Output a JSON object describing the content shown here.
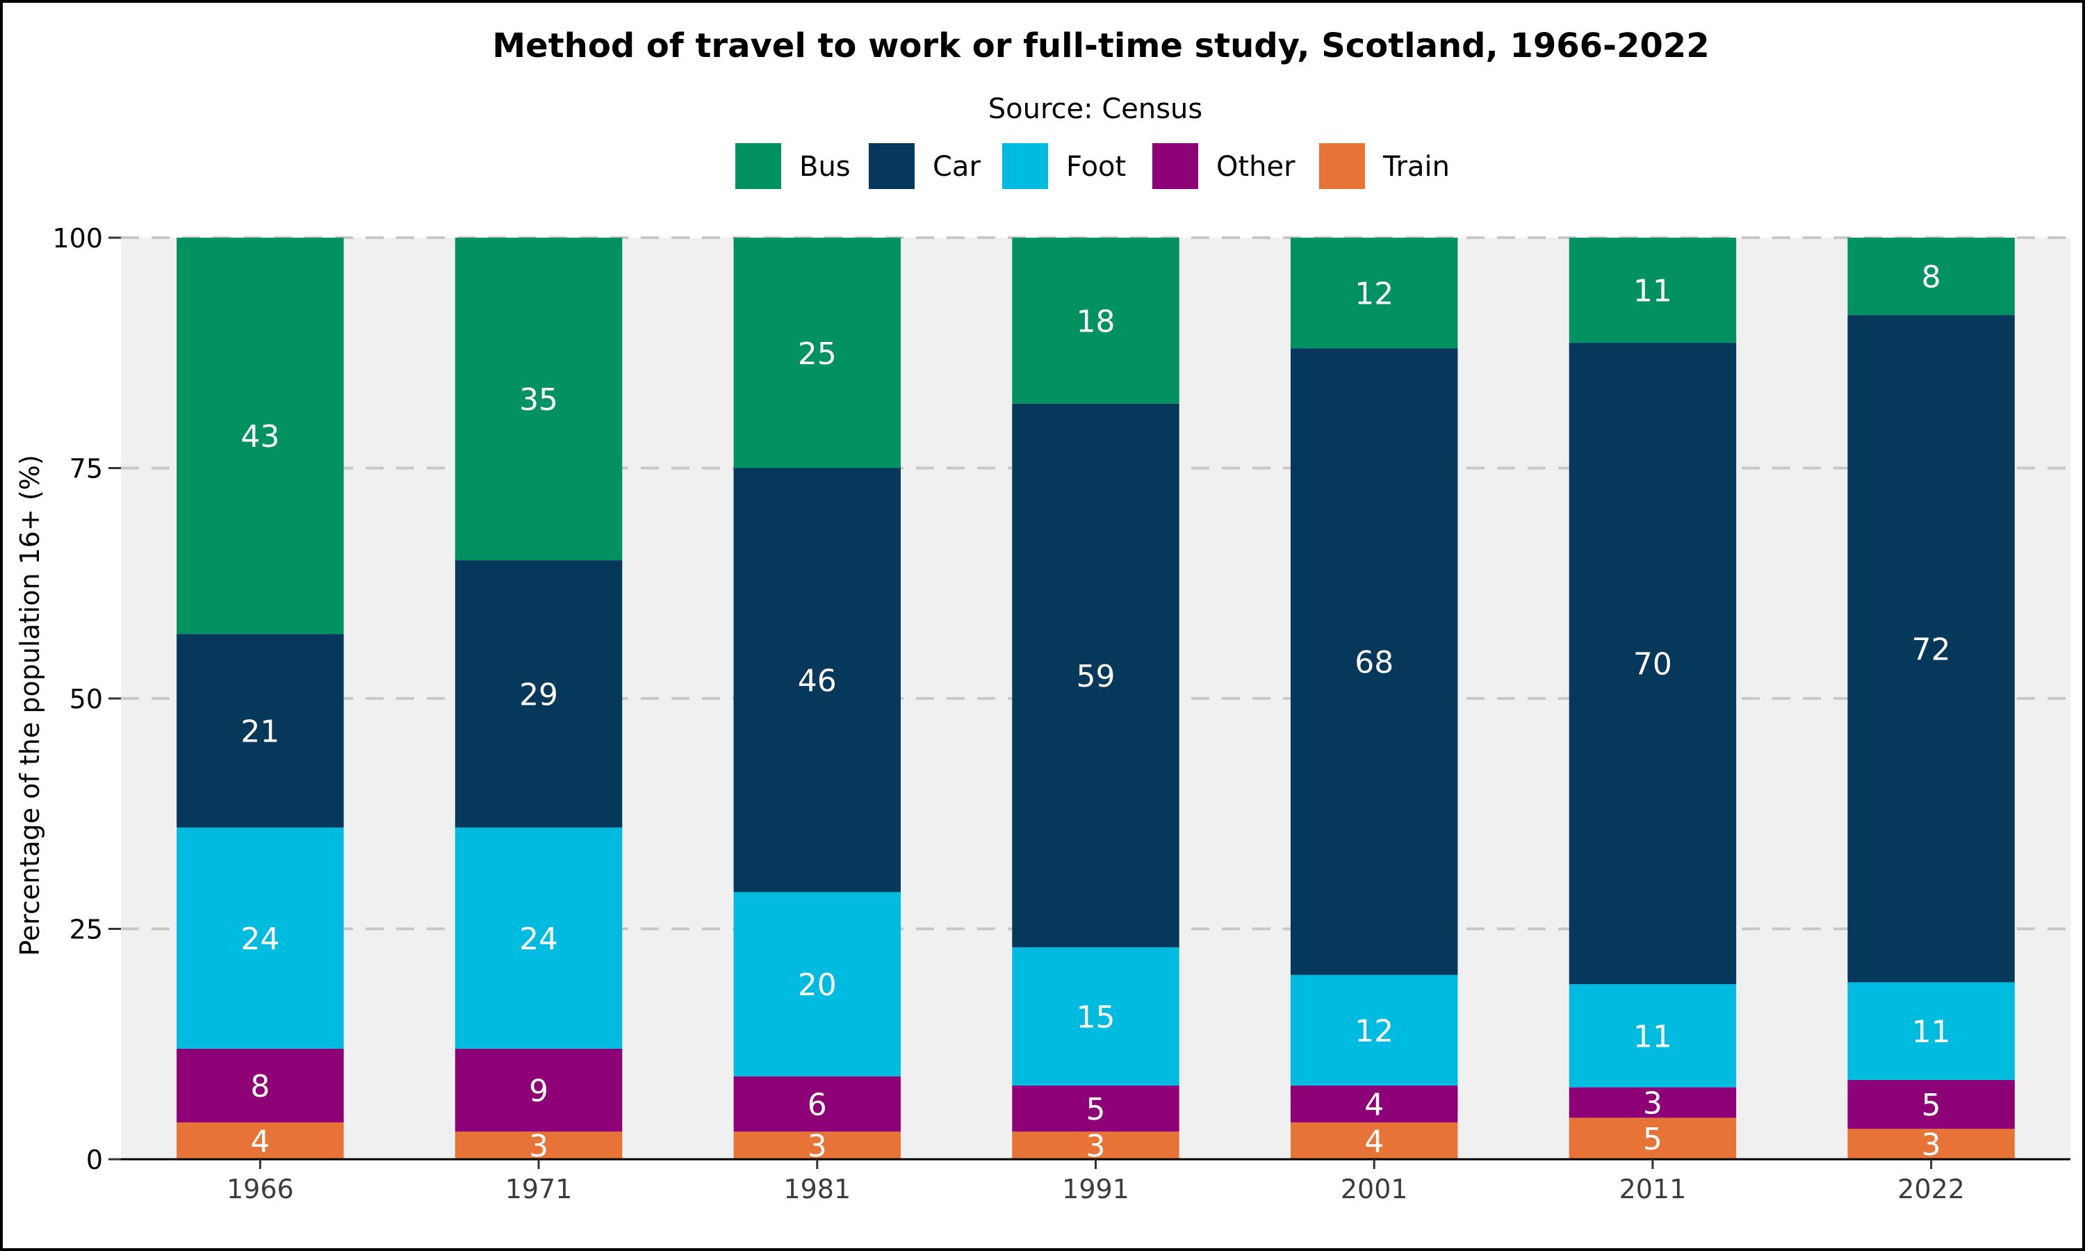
{
  "chart_data": {
    "type": "bar",
    "stacked": true,
    "title": "Method of travel to work or full-time study, Scotland, 1966-2022",
    "subtitle": "Source: Census",
    "xlabel": "",
    "ylabel": "Percentage of the population 16+ (%)",
    "ylim": [
      0,
      100
    ],
    "yticks": [
      "0",
      "25",
      "50",
      "75",
      "100"
    ],
    "grid": "horizontal dashed",
    "legend_position": "top",
    "categories": [
      "1966",
      "1971",
      "1981",
      "1991",
      "2001",
      "2011",
      "2022"
    ],
    "series": [
      {
        "name": "Train",
        "color": "#E87337",
        "values": [
          4,
          3,
          3,
          3,
          4,
          4.5,
          3.3
        ],
        "labels": [
          "4",
          "3",
          "3",
          "3",
          "4",
          "5",
          "3"
        ]
      },
      {
        "name": "Other",
        "color": "#8E0176",
        "values": [
          8,
          9,
          6,
          5,
          4,
          3.3,
          5.3
        ],
        "labels": [
          "8",
          "9",
          "6",
          "5",
          "4",
          "3",
          "5"
        ]
      },
      {
        "name": "Foot",
        "color": "#00BBE0",
        "values": [
          24,
          24,
          20,
          15,
          12,
          11.2,
          10.6
        ],
        "labels": [
          "24",
          "24",
          "20",
          "15",
          "12",
          "11",
          "11"
        ]
      },
      {
        "name": "Car",
        "color": "#06385B",
        "values": [
          21,
          29,
          46,
          59,
          68,
          69.6,
          72.4
        ],
        "labels": [
          "21",
          "29",
          "46",
          "59",
          "68",
          "70",
          "72"
        ]
      },
      {
        "name": "Bus",
        "color": "#029160",
        "values": [
          43,
          35,
          25,
          18,
          12,
          11.4,
          8.4
        ],
        "labels": [
          "43",
          "35",
          "25",
          "18",
          "12",
          "11",
          "8"
        ]
      }
    ],
    "legend_order": [
      "Bus",
      "Car",
      "Foot",
      "Other",
      "Train"
    ]
  }
}
